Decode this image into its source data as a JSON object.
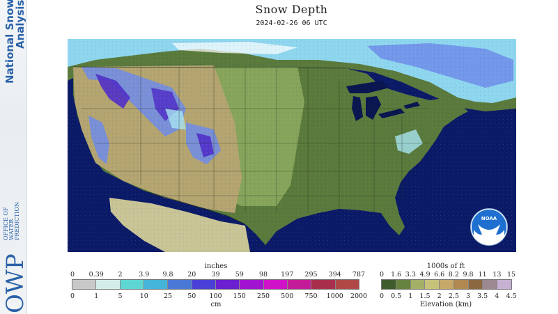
{
  "sidebar": {
    "line1": "National Snow",
    "line2": "Analysis",
    "logo_letters": "OWP",
    "logo_line1": "OFFICE OF",
    "logo_line2": "WATER",
    "logo_line3": "PREDICTION"
  },
  "header": {
    "title": "Snow Depth",
    "timestamp": "2024-02-26 06 UTC"
  },
  "noaa_logo_text": "NOAA",
  "snow_legend": {
    "top_unit": "inches",
    "top_ticks": [
      "0",
      "0.39",
      "2",
      "3.9",
      "9.8",
      "20",
      "39",
      "59",
      "98",
      "197",
      "295",
      "394",
      "787"
    ],
    "bottom_ticks": [
      "0",
      "1",
      "5",
      "10",
      "25",
      "50",
      "100",
      "150",
      "250",
      "500",
      "750",
      "1000",
      "2000"
    ],
    "bottom_unit": "cm",
    "colors": [
      "#c8c8c8",
      "#d4ece8",
      "#5fd6d2",
      "#44b4d8",
      "#4a78d6",
      "#4a3fd6",
      "#6a1fd0",
      "#a014d0",
      "#d012c8",
      "#c41c98",
      "#a8304c",
      "#b04848"
    ]
  },
  "elevation_legend": {
    "top_unit": "1000s of ft",
    "top_ticks": [
      "0",
      "1.6",
      "3.3",
      "4.9",
      "6.6",
      "8.2",
      "9.8",
      "11",
      "13",
      "15"
    ],
    "bottom_ticks": [
      "0",
      "0.5",
      "1",
      "1.5",
      "2",
      "2.5",
      "3",
      "3.5",
      "4",
      "4.5"
    ],
    "bottom_unit": "Elevation (km)",
    "colors": [
      "#3e5c2c",
      "#66823e",
      "#a4b068",
      "#c6c27a",
      "#c6a868",
      "#b08850",
      "#8c6840",
      "#9c8890",
      "#c6b0d4"
    ]
  },
  "colors": {
    "ocean": "#0b1a66",
    "ocean_edge": "#16237a",
    "land_east": "#5a7a3c",
    "land_plains": "#86a45a",
    "land_west": "#b4a470",
    "mexico": "#c8c496",
    "snow_light": "#a8e4f0",
    "snow_mid": "#6e8ce8",
    "snow_deep": "#5030c8",
    "lakes": "#0a1650"
  }
}
